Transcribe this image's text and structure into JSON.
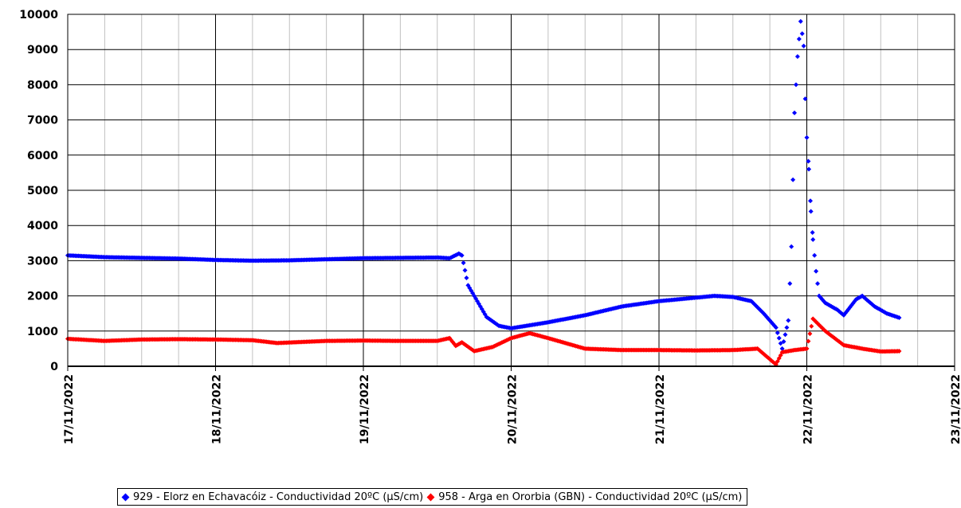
{
  "chart_data": {
    "type": "scatter",
    "title": "",
    "xlabel": "",
    "ylabel": "",
    "x_range": [
      "2022-11-17T00:00",
      "2022-11-23T00:00"
    ],
    "x_tick_labels": [
      "17/11/2022",
      "18/11/2022",
      "19/11/2022",
      "20/11/2022",
      "21/11/2022",
      "22/11/2022",
      "23/11/2022"
    ],
    "ylim": [
      0,
      10000
    ],
    "y_tick_labels": [
      "0",
      "1000",
      "2000",
      "3000",
      "4000",
      "5000",
      "6000",
      "7000",
      "8000",
      "9000",
      "10000"
    ],
    "grid": true,
    "legend_position": "bottom",
    "series": [
      {
        "name": "929 - Elorz en Echavacóiz - Conductividad 20ºC (µS/cm)",
        "color": "#0000ff",
        "marker": "diamond",
        "points": [
          [
            "2022-11-17T00:00",
            3150
          ],
          [
            "2022-11-17T06:00",
            3100
          ],
          [
            "2022-11-17T12:00",
            3080
          ],
          [
            "2022-11-17T18:00",
            3060
          ],
          [
            "2022-11-18T00:00",
            3020
          ],
          [
            "2022-11-18T06:00",
            3000
          ],
          [
            "2022-11-18T12:00",
            3010
          ],
          [
            "2022-11-18T18:00",
            3040
          ],
          [
            "2022-11-19T00:00",
            3070
          ],
          [
            "2022-11-19T06:00",
            3080
          ],
          [
            "2022-11-19T12:00",
            3090
          ],
          [
            "2022-11-19T14:00",
            3070
          ],
          [
            "2022-11-19T15:30",
            3200
          ],
          [
            "2022-11-19T16:00",
            3150
          ],
          [
            "2022-11-19T17:00",
            2300
          ],
          [
            "2022-11-19T18:00",
            2000
          ],
          [
            "2022-11-19T20:00",
            1400
          ],
          [
            "2022-11-19T22:00",
            1150
          ],
          [
            "2022-11-20T00:00",
            1080
          ],
          [
            "2022-11-20T06:00",
            1250
          ],
          [
            "2022-11-20T12:00",
            1450
          ],
          [
            "2022-11-20T18:00",
            1700
          ],
          [
            "2022-11-21T00:00",
            1850
          ],
          [
            "2022-11-21T06:00",
            1950
          ],
          [
            "2022-11-21T09:00",
            2000
          ],
          [
            "2022-11-21T12:00",
            1970
          ],
          [
            "2022-11-21T15:00",
            1850
          ],
          [
            "2022-11-21T17:00",
            1500
          ],
          [
            "2022-11-21T19:00",
            1100
          ],
          [
            "2022-11-21T20:00",
            500
          ],
          [
            "2022-11-21T21:00",
            1300
          ],
          [
            "2022-11-21T21:30",
            3400
          ],
          [
            "2022-11-21T22:00",
            7200
          ],
          [
            "2022-11-21T22:30",
            8800
          ],
          [
            "2022-11-21T23:00",
            9800
          ],
          [
            "2022-11-21T23:30",
            9100
          ],
          [
            "2022-11-21T23:45",
            7600
          ],
          [
            "2022-11-22T00:00",
            6500
          ],
          [
            "2022-11-22T00:20",
            5600
          ],
          [
            "2022-11-22T00:40",
            4400
          ],
          [
            "2022-11-22T01:00",
            3600
          ],
          [
            "2022-11-22T01:30",
            2700
          ],
          [
            "2022-11-22T02:00",
            2000
          ],
          [
            "2022-11-22T03:00",
            1800
          ],
          [
            "2022-11-22T05:00",
            1600
          ],
          [
            "2022-11-22T06:00",
            1450
          ],
          [
            "2022-11-22T08:00",
            1900
          ],
          [
            "2022-11-22T09:00",
            2000
          ],
          [
            "2022-11-22T11:00",
            1700
          ],
          [
            "2022-11-22T13:00",
            1500
          ],
          [
            "2022-11-22T15:00",
            1380
          ]
        ]
      },
      {
        "name": "958 - Arga en Ororbia (GBN) - Conductividad 20ºC (µS/cm)",
        "color": "#ff0000",
        "marker": "diamond",
        "points": [
          [
            "2022-11-17T00:00",
            780
          ],
          [
            "2022-11-17T06:00",
            720
          ],
          [
            "2022-11-17T12:00",
            760
          ],
          [
            "2022-11-17T18:00",
            770
          ],
          [
            "2022-11-18T00:00",
            760
          ],
          [
            "2022-11-18T06:00",
            740
          ],
          [
            "2022-11-18T10:00",
            660
          ],
          [
            "2022-11-18T18:00",
            720
          ],
          [
            "2022-11-19T00:00",
            730
          ],
          [
            "2022-11-19T06:00",
            720
          ],
          [
            "2022-11-19T12:00",
            720
          ],
          [
            "2022-11-19T14:00",
            800
          ],
          [
            "2022-11-19T15:00",
            580
          ],
          [
            "2022-11-19T16:00",
            680
          ],
          [
            "2022-11-19T18:00",
            430
          ],
          [
            "2022-11-19T21:00",
            550
          ],
          [
            "2022-11-20T00:00",
            800
          ],
          [
            "2022-11-20T03:00",
            940
          ],
          [
            "2022-11-20T06:00",
            800
          ],
          [
            "2022-11-20T12:00",
            500
          ],
          [
            "2022-11-20T18:00",
            460
          ],
          [
            "2022-11-21T00:00",
            460
          ],
          [
            "2022-11-21T06:00",
            450
          ],
          [
            "2022-11-21T12:00",
            460
          ],
          [
            "2022-11-21T16:00",
            500
          ],
          [
            "2022-11-21T19:00",
            50
          ],
          [
            "2022-11-21T20:00",
            400
          ],
          [
            "2022-11-21T22:00",
            460
          ],
          [
            "2022-11-22T00:00",
            500
          ],
          [
            "2022-11-22T01:00",
            1350
          ],
          [
            "2022-11-22T03:00",
            1000
          ],
          [
            "2022-11-22T06:00",
            600
          ],
          [
            "2022-11-22T09:00",
            500
          ],
          [
            "2022-11-22T12:00",
            420
          ],
          [
            "2022-11-22T15:00",
            430
          ]
        ]
      }
    ]
  }
}
